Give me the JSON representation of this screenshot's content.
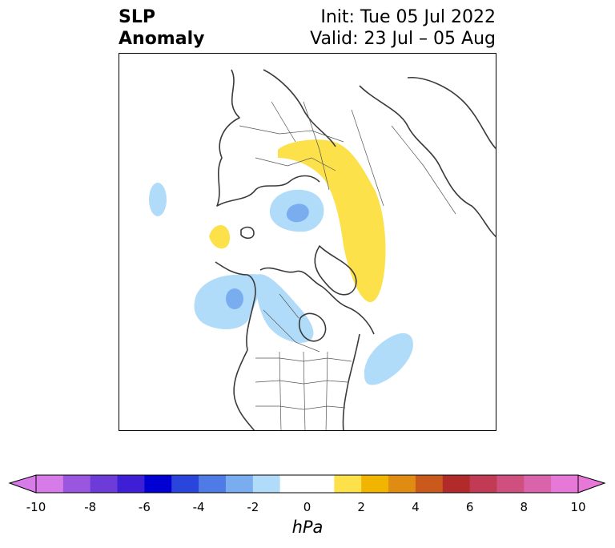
{
  "title": {
    "left_line1": "SLP",
    "left_line2": "Anomaly",
    "right_line1": "Init: Tue 05 Jul 2022",
    "right_line2": "Valid: 23 Jul – 05 Aug"
  },
  "colorbar": {
    "unit": "hPa",
    "ticks": [
      "-10",
      "-8",
      "-6",
      "-4",
      "-2",
      "0",
      "2",
      "4",
      "6",
      "8",
      "10"
    ],
    "tick_values": [
      -10,
      -8,
      -6,
      -4,
      -2,
      0,
      2,
      4,
      6,
      8,
      10
    ],
    "range": [
      -10,
      10
    ],
    "extend": "both",
    "colors": {
      "under": "#d67be8",
      "bins": [
        "#d67be8",
        "#9b56e0",
        "#6c3bd8",
        "#3f1fd6",
        "#0000d2",
        "#2a45dc",
        "#4f7be6",
        "#79adf0",
        "#b0dcfa",
        "#ffffff",
        "#ffffff",
        "#fce14a",
        "#f1b400",
        "#e08c12",
        "#c95a1c",
        "#b22a2a",
        "#c23b55",
        "#cf4f7e",
        "#da64ac",
        "#e878d8"
      ],
      "over": "#e878d8"
    }
  },
  "map": {
    "projection": "north polar stereographic",
    "colors": {
      "negative_light": "#b0dcfa",
      "negative_medium": "#79adf0",
      "positive_light": "#fce14a",
      "coastline": "#3a3a3a"
    }
  }
}
